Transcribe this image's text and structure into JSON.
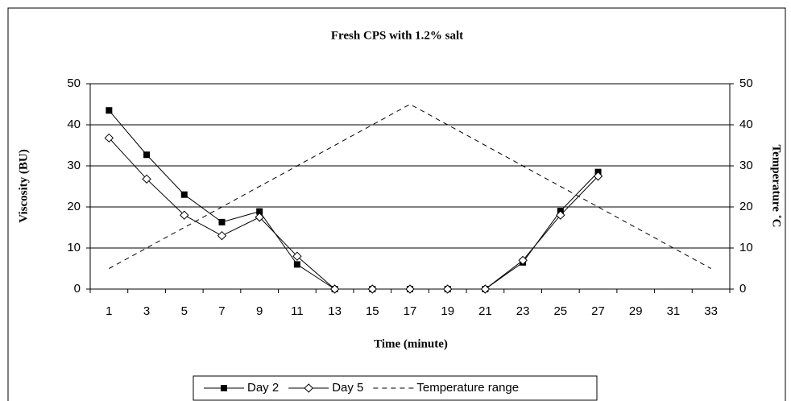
{
  "chart_data": {
    "type": "line",
    "title": "Fresh CPS with 1.2% salt",
    "x_label": "Time (minute)",
    "y_label": "Viscosity (BU)",
    "y2_label": "Temperature ˚C",
    "categories": [
      1,
      3,
      5,
      7,
      9,
      11,
      13,
      15,
      17,
      19,
      21,
      23,
      25,
      27,
      29,
      31,
      33
    ],
    "series": [
      {
        "name": "Day 2",
        "color": "#000000",
        "marker": "square",
        "values": [
          43.5,
          32.7,
          23,
          16.3,
          18.9,
          6,
          0,
          0,
          0,
          0,
          0,
          6.5,
          19,
          28.5,
          null,
          null,
          null
        ]
      },
      {
        "name": "Day 5",
        "color": "#000000",
        "marker": "diamond",
        "values": [
          36.8,
          26.8,
          18,
          13,
          17.5,
          8,
          0,
          0,
          0,
          0,
          0,
          7,
          18,
          27.5,
          null,
          null,
          null
        ]
      },
      {
        "name": "Temperature range",
        "color": "#000000",
        "dashed": true,
        "axis": "y2",
        "values": [
          5,
          10,
          15,
          20,
          25,
          30,
          35,
          40,
          45,
          40,
          35,
          30,
          25,
          20,
          15,
          10,
          5
        ]
      }
    ],
    "ylim": [
      0,
      50
    ],
    "yticks": [
      0,
      10,
      20,
      30,
      40,
      50
    ],
    "y2lim": [
      0,
      50
    ],
    "y2ticks": [
      0,
      10,
      20,
      30,
      40,
      50
    ],
    "grid": true,
    "legend": "bottom"
  }
}
